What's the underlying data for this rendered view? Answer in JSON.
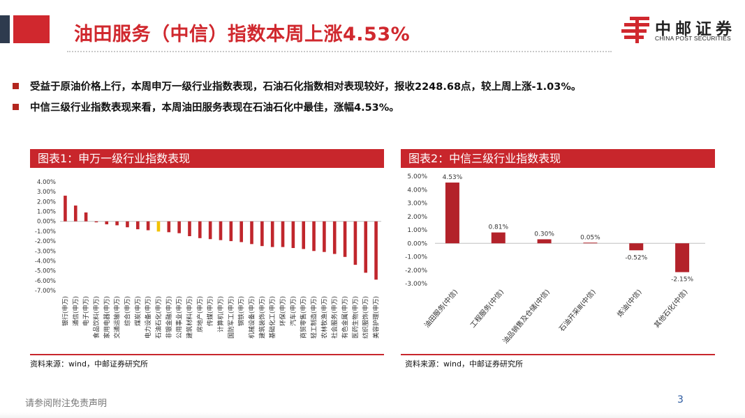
{
  "header": {
    "title": "油田服务（中信）指数本周上涨4.53%",
    "logo_cn": "中邮证券",
    "logo_en": "CHINA POST SECURITIES"
  },
  "bullets": [
    "受益于原油价格上行，本周申万一级行业指数表现，石油石化指数相对表现较好，报收2248.68点，较上周上涨-1.03%。",
    "中信三级行业指数表现来看，本周油田服务表现在石油石化中最佳，涨幅4.53%。"
  ],
  "chart1": {
    "heading": "图表1：申万一级行业指数表现",
    "source": "资料来源：wind，中邮证券研究所"
  },
  "chart2": {
    "heading": "图表2：中信三级行业指数表现",
    "source": "资料来源：wind，中邮证券研究所"
  },
  "chart_data": [
    {
      "type": "bar",
      "title": "图表1：申万一级行业指数表现",
      "unit": "%",
      "ylim": [
        -7,
        4
      ],
      "yticks": [
        "4.00%",
        "3.00%",
        "2.00%",
        "1.00%",
        "0.00%",
        "-1.00%",
        "-2.00%",
        "-3.00%",
        "-4.00%",
        "-5.00%",
        "-6.00%",
        "-7.00%"
      ],
      "categories": [
        "银行(申万)",
        "通信(申万)",
        "电子(申万)",
        "食品饮料(申万)",
        "家用电器(申万)",
        "交通运输(申万)",
        "综合(申万)",
        "煤炭(申万)",
        "电力设备(申万)",
        "石油石化(申万)",
        "非银金融(申万)",
        "公用事业(申万)",
        "建筑材料(申万)",
        "房地产(申万)",
        "传媒(申万)",
        "计算机(申万)",
        "国防军工(申万)",
        "钢铁(申万)",
        "机械设备(申万)",
        "建筑装饰(申万)",
        "基础化工(申万)",
        "环保(申万)",
        "汽车(申万)",
        "商贸零售(申万)",
        "轻工制造(申万)",
        "农林牧渔(申万)",
        "社会服务(申万)",
        "有色金属(申万)",
        "医药生物(申万)",
        "纺织服饰(申万)",
        "美容护理(申万)"
      ],
      "values": [
        2.6,
        1.6,
        0.9,
        -0.1,
        -0.3,
        -0.4,
        -0.6,
        -0.8,
        -0.9,
        -1.03,
        -1.1,
        -1.2,
        -1.5,
        -1.7,
        -1.8,
        -1.9,
        -2.0,
        -2.1,
        -2.3,
        -2.5,
        -2.6,
        -2.6,
        -2.7,
        -2.8,
        -3.0,
        -3.1,
        -3.3,
        -3.6,
        -4.4,
        -5.2,
        -5.9
      ],
      "highlight_index": 9,
      "bar_color": "#c0262c",
      "highlight_color": "#f2c200"
    },
    {
      "type": "bar",
      "title": "图表2：中信三级行业指数表现",
      "unit": "%",
      "ylim": [
        -3,
        5
      ],
      "yticks": [
        "5.00%",
        "4.00%",
        "3.00%",
        "2.00%",
        "1.00%",
        "0.00%",
        "-1.00%",
        "-2.00%",
        "-3.00%"
      ],
      "categories": [
        "油田服务(中信)",
        "工程服务(中信)",
        "油品销售及仓储(中信)",
        "石油开采Ⅲ(中信)",
        "炼油(中信)",
        "其他石化(中信)"
      ],
      "values": [
        4.53,
        0.81,
        0.3,
        0.05,
        -0.52,
        -2.15
      ],
      "labels": [
        "4.53%",
        "0.81%",
        "0.30%",
        "0.05%",
        "-0.52%",
        "-2.15%"
      ],
      "bar_color": "#b3222a"
    }
  ],
  "footer": {
    "disclaimer": "请参阅附注免责声明",
    "page": "3"
  }
}
